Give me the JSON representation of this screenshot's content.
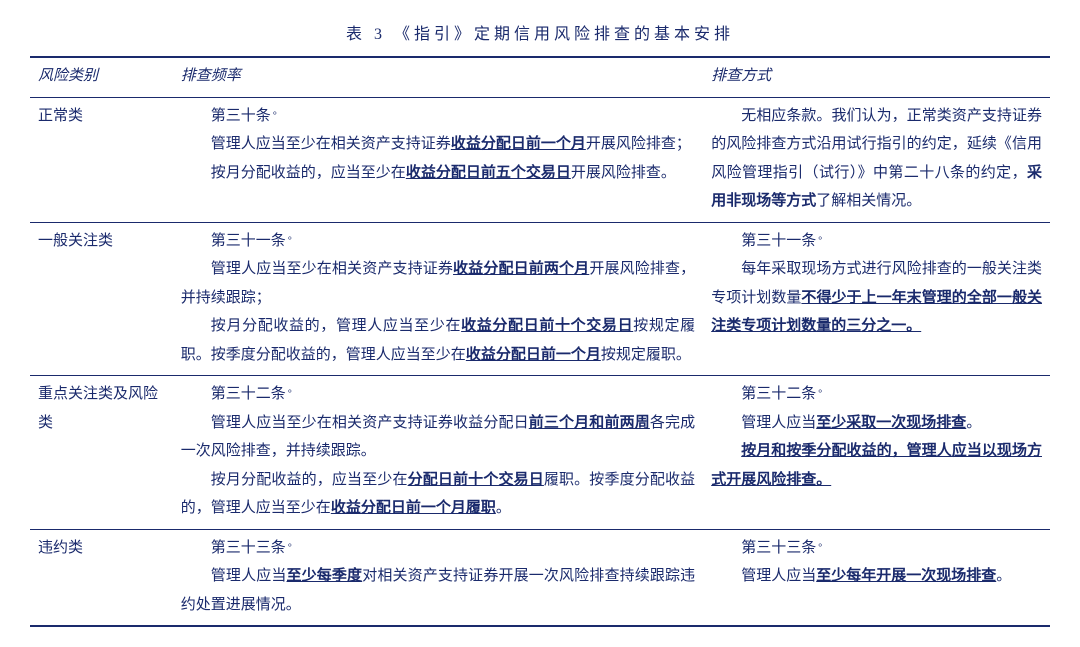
{
  "title": "表 3   《指引》定期信用风险排查的基本安排",
  "headers": {
    "col1": "风险类别",
    "col2": "排查频率",
    "col3": "排查方式"
  },
  "rows": [
    {
      "cat": "正常类",
      "freq": [
        [
          {
            "t": "第三十条",
            "cls": ""
          },
          {
            "t": "。",
            "cls": "sup"
          }
        ],
        [
          {
            "t": "管理人应当至少在相关资产支持证券"
          },
          {
            "t": "收益分配日前一个月",
            "cls": "b u"
          },
          {
            "t": "开展风险排查；"
          }
        ],
        [
          {
            "t": "按月分配收益的，应当至少在"
          },
          {
            "t": "收益分配日前五个交易日",
            "cls": "b u"
          },
          {
            "t": "开展风险排查。"
          }
        ]
      ],
      "mode": [
        [
          {
            "t": "无相应条款。我们认为，正常类资产支持证券的风险排查方式沿用试行指引的约定，延续《信用风险管理指引（试行）》中第二十八条的约定，"
          },
          {
            "t": "采用非现场等方式",
            "cls": "b"
          },
          {
            "t": "了解相关情况。"
          }
        ]
      ]
    },
    {
      "cat": "一般关注类",
      "freq": [
        [
          {
            "t": "第三十一条"
          },
          {
            "t": "。",
            "cls": "sup"
          }
        ],
        [
          {
            "t": "管理人应当至少在相关资产支持证券"
          },
          {
            "t": "收益分配日前两个月",
            "cls": "b u"
          },
          {
            "t": "开展风险排查，并持续跟踪；"
          }
        ],
        [
          {
            "t": "按月分配收益的，管理人应当至少在"
          },
          {
            "t": "收益分配日前十个交易日",
            "cls": "b u"
          },
          {
            "t": "按规定履职。按季度分配收益的，管理人应当至少在"
          },
          {
            "t": "收益分配日前一个月",
            "cls": "b u"
          },
          {
            "t": "按规定履职。"
          }
        ]
      ],
      "mode": [
        [
          {
            "t": "第三十一条"
          },
          {
            "t": "。",
            "cls": "sup"
          }
        ],
        [
          {
            "t": "每年采取现场方式进行风险排查的一般关注类专项计划数量"
          },
          {
            "t": "不得少于上一年末管理的全部一般关注类专项计划数量的三分之一。",
            "cls": "b u"
          }
        ]
      ]
    },
    {
      "cat": "重点关注类及风险类",
      "freq": [
        [
          {
            "t": "第三十二条"
          },
          {
            "t": "。",
            "cls": "sup"
          }
        ],
        [
          {
            "t": "管理人应当至少在相关资产支持证券收益分配日"
          },
          {
            "t": "前三个月和前两周",
            "cls": "b u"
          },
          {
            "t": "各完成一次风险排查，并持续跟踪。"
          }
        ],
        [
          {
            "t": "按月分配收益的，应当至少在"
          },
          {
            "t": "分配日前十个交易日",
            "cls": "b u"
          },
          {
            "t": "履职。按季度分配收益的，管理人应当至少在"
          },
          {
            "t": "收益分配日前一个月履职",
            "cls": "b u"
          },
          {
            "t": "。"
          }
        ]
      ],
      "mode": [
        [
          {
            "t": "第三十二条"
          },
          {
            "t": "。",
            "cls": "sup"
          }
        ],
        [
          {
            "t": "管理人应当"
          },
          {
            "t": "至少采取一次现场排查",
            "cls": "b u"
          },
          {
            "t": "。"
          }
        ],
        [
          {
            "t": "按月和按季分配收益的，管理人应当以现场方式开展风险排查。",
            "cls": "b u"
          }
        ]
      ]
    },
    {
      "cat": "违约类",
      "freq": [
        [
          {
            "t": "第三十三条"
          },
          {
            "t": "。",
            "cls": "sup"
          }
        ],
        [
          {
            "t": "管理人应当"
          },
          {
            "t": "至少每季度",
            "cls": "b u"
          },
          {
            "t": "对相关资产支持证券开展一次风险排查持续跟踪违约处置进展情况。"
          }
        ]
      ],
      "mode": [
        [
          {
            "t": "第三十三条"
          },
          {
            "t": "。",
            "cls": "sup"
          }
        ],
        [
          {
            "t": "管理人应当"
          },
          {
            "t": "至少每年开展一次现场排查",
            "cls": "b u"
          },
          {
            "t": "。"
          }
        ]
      ]
    }
  ],
  "colors": {
    "text": "#1a2a6c",
    "bg": "#ffffff"
  }
}
